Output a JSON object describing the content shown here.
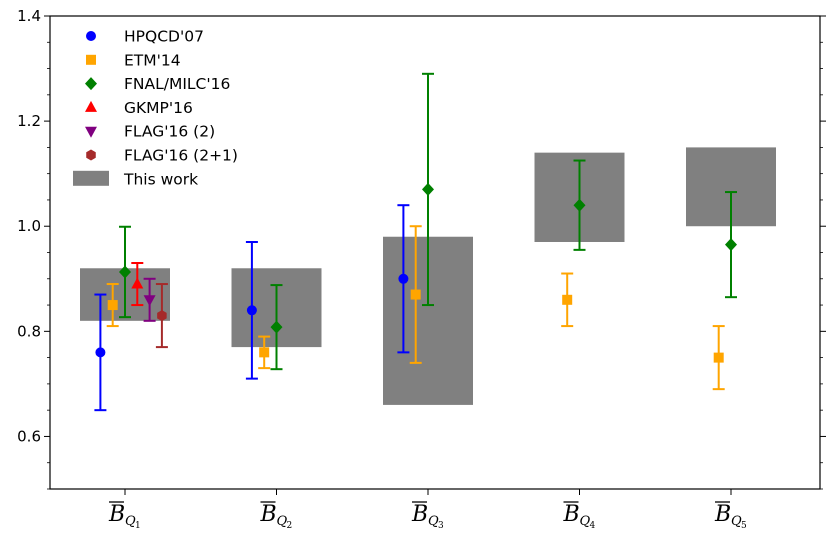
{
  "chart_data": {
    "type": "errorbar",
    "title": "",
    "xlabel": "",
    "ylabel": "",
    "ylim": [
      0.5,
      1.4
    ],
    "yticks": [
      0.6,
      0.8,
      1.0,
      1.2,
      1.4
    ],
    "ytick_labels": [
      "0.6",
      "0.8",
      "1.0",
      "1.2",
      "1.4"
    ],
    "categories": [
      {
        "base": "B",
        "sub": "Q",
        "subsub": "1"
      },
      {
        "base": "B",
        "sub": "Q",
        "subsub": "2"
      },
      {
        "base": "B",
        "sub": "Q",
        "subsub": "3"
      },
      {
        "base": "B",
        "sub": "Q",
        "subsub": "4"
      },
      {
        "base": "B",
        "sub": "Q",
        "subsub": "5"
      }
    ],
    "bands": {
      "name": "This work",
      "color": "#808080",
      "ranges": [
        [
          0.82,
          0.92
        ],
        [
          0.77,
          0.92
        ],
        [
          0.66,
          0.98
        ],
        [
          0.97,
          1.14
        ],
        [
          1.0,
          1.15
        ]
      ]
    },
    "series": [
      {
        "name": "HPQCD'07",
        "color": "#0000ff",
        "marker": "circle",
        "offset": -0.3,
        "points": [
          {
            "cat": 0,
            "value": 0.76,
            "lo": 0.65,
            "hi": 0.87
          },
          {
            "cat": 1,
            "value": 0.84,
            "lo": 0.71,
            "hi": 0.97
          },
          {
            "cat": 2,
            "value": 0.9,
            "lo": 0.76,
            "hi": 1.04
          }
        ]
      },
      {
        "name": "ETM'14",
        "color": "#ffa500",
        "marker": "square",
        "offset": -0.15,
        "points": [
          {
            "cat": 0,
            "value": 0.85,
            "lo": 0.81,
            "hi": 0.89
          },
          {
            "cat": 1,
            "value": 0.76,
            "lo": 0.73,
            "hi": 0.79
          },
          {
            "cat": 2,
            "value": 0.87,
            "lo": 0.74,
            "hi": 1.0
          },
          {
            "cat": 3,
            "value": 0.86,
            "lo": 0.81,
            "hi": 0.91
          },
          {
            "cat": 4,
            "value": 0.75,
            "lo": 0.69,
            "hi": 0.81
          }
        ]
      },
      {
        "name": "FNAL/MILC'16",
        "color": "#008000",
        "marker": "diamond",
        "offset": 0.0,
        "points": [
          {
            "cat": 0,
            "value": 0.913,
            "lo": 0.827,
            "hi": 0.999
          },
          {
            "cat": 1,
            "value": 0.808,
            "lo": 0.728,
            "hi": 0.888
          },
          {
            "cat": 2,
            "value": 1.07,
            "lo": 0.85,
            "hi": 1.29
          },
          {
            "cat": 3,
            "value": 1.04,
            "lo": 0.955,
            "hi": 1.125
          },
          {
            "cat": 4,
            "value": 0.965,
            "lo": 0.865,
            "hi": 1.065
          }
        ]
      },
      {
        "name": "GKMP'16",
        "color": "#ff0000",
        "marker": "triangle-up",
        "offset": 0.15,
        "points": [
          {
            "cat": 0,
            "value": 0.89,
            "lo": 0.85,
            "hi": 0.93
          }
        ]
      },
      {
        "name": "FLAG'16 (2)",
        "color": "#800080",
        "marker": "triangle-down",
        "offset": 0.3,
        "points": [
          {
            "cat": 0,
            "value": 0.86,
            "lo": 0.82,
            "hi": 0.9
          }
        ]
      },
      {
        "name": "FLAG'16 (2+1)",
        "color": "#a52a2a",
        "marker": "hexagon",
        "offset": 0.45,
        "points": [
          {
            "cat": 0,
            "value": 0.83,
            "lo": 0.77,
            "hi": 0.89
          }
        ]
      }
    ],
    "legend_position": "top-left"
  }
}
